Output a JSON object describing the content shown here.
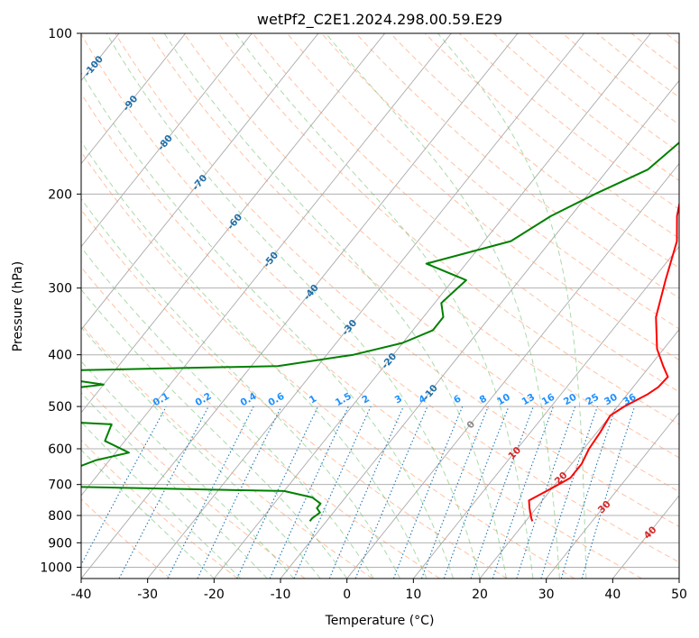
{
  "chart_data": {
    "type": "skew-t log-p",
    "title": "wetPf2_C2E1.2024.298.00.59.E29",
    "xlabel": "Temperature (°C)",
    "ylabel": "Pressure (hPa)",
    "xlim": [
      -40,
      50
    ],
    "ylim": [
      1050,
      100
    ],
    "y_scale": "log",
    "grid": true,
    "x_ticks": [
      -40,
      -30,
      -20,
      -10,
      0,
      10,
      20,
      30,
      40,
      50
    ],
    "y_ticks": [
      100,
      200,
      300,
      400,
      500,
      600,
      700,
      800,
      900,
      1000
    ],
    "colors": {
      "temperature": "#ff0000",
      "dewpoint": "#008000",
      "dry_adiabat": "#ff9966",
      "moist_adiabat": "#66bb66",
      "mixing_ratio": "#1f77b4",
      "isotherm": "#999999",
      "dry_adiabat_label": "#d62728",
      "moist_adiabat_label": "#1f6fa8",
      "mixing_ratio_label": "#1e90ff"
    },
    "series": [
      {
        "key": "temperature",
        "points": [
          [
            0,
            100
          ],
          [
            2,
            120
          ],
          [
            3.7,
            140
          ],
          [
            1.7,
            160
          ],
          [
            2.4,
            180
          ],
          [
            4,
            200
          ],
          [
            6,
            220
          ],
          [
            9,
            245
          ],
          [
            12,
            290
          ],
          [
            15,
            340
          ],
          [
            19,
            390
          ],
          [
            22,
            420
          ],
          [
            24,
            440
          ],
          [
            23.8,
            460
          ],
          [
            23,
            475
          ],
          [
            21,
            500
          ],
          [
            20,
            520
          ],
          [
            20.5,
            560
          ],
          [
            20.8,
            600
          ],
          [
            21.5,
            640
          ],
          [
            21.5,
            680
          ],
          [
            20.5,
            700
          ],
          [
            19.5,
            720
          ],
          [
            18,
            750
          ],
          [
            19,
            775
          ],
          [
            20.5,
            810
          ],
          [
            21,
            820
          ]
        ]
      },
      {
        "key": "dewpoint",
        "points": [
          [
            -1,
            100
          ],
          [
            0,
            115
          ],
          [
            -1,
            125
          ],
          [
            -5,
            135
          ],
          [
            -5,
            145
          ],
          [
            -2.5,
            160
          ],
          [
            -4,
            180
          ],
          [
            -9,
            200
          ],
          [
            -13,
            220
          ],
          [
            -16,
            245
          ],
          [
            -26,
            270
          ],
          [
            -18,
            290
          ],
          [
            -19,
            320
          ],
          [
            -17,
            340
          ],
          [
            -17,
            360
          ],
          [
            -20,
            380
          ],
          [
            -26,
            400
          ],
          [
            -36,
            420
          ],
          [
            -75,
            430
          ],
          [
            -60,
            455
          ],
          [
            -75,
            480
          ],
          [
            -80,
            490
          ],
          [
            -80,
            520
          ],
          [
            -54,
            540
          ],
          [
            -53,
            580
          ],
          [
            -48,
            610
          ],
          [
            -52,
            630
          ],
          [
            -55,
            660
          ],
          [
            -60,
            690
          ],
          [
            -70,
            700
          ],
          [
            -20,
            720
          ],
          [
            -15,
            740
          ],
          [
            -13,
            760
          ],
          [
            -13,
            775
          ],
          [
            -12,
            790
          ],
          [
            -12.5,
            810
          ],
          [
            -12.5,
            820
          ]
        ]
      }
    ],
    "isotherm_labels": [
      {
        "text": "-100",
        "t": -100,
        "p": 115
      },
      {
        "text": "-90",
        "t": -90,
        "p": 135
      },
      {
        "text": "-80",
        "t": -80,
        "p": 160
      },
      {
        "text": "-70",
        "t": -70,
        "p": 190
      },
      {
        "text": "-60",
        "t": -60,
        "p": 225
      },
      {
        "text": "-50",
        "t": -50,
        "p": 265
      },
      {
        "text": "-40",
        "t": -40,
        "p": 305
      },
      {
        "text": "-30",
        "t": -30,
        "p": 355
      },
      {
        "text": "-20",
        "t": -20,
        "p": 410
      },
      {
        "text": "-10",
        "t": -10,
        "p": 470
      },
      {
        "text": "0",
        "t": 0,
        "p": 540
      }
    ],
    "dry_adiabat_labels": [
      {
        "text": "10",
        "t": 10,
        "p": 610
      },
      {
        "text": "20",
        "t": 20,
        "p": 680
      },
      {
        "text": "30",
        "t": 30,
        "p": 770
      },
      {
        "text": "40",
        "t": 40,
        "p": 860
      }
    ],
    "mixing_ratio_labels": [
      "0.1",
      "0.2",
      "0.4",
      "0.6",
      "1",
      "1.5",
      "2",
      "3",
      "4",
      "6",
      "8",
      "10",
      "13",
      "16",
      "20",
      "25",
      "30",
      "36"
    ],
    "mixing_ratio_label_pressure": 500
  }
}
